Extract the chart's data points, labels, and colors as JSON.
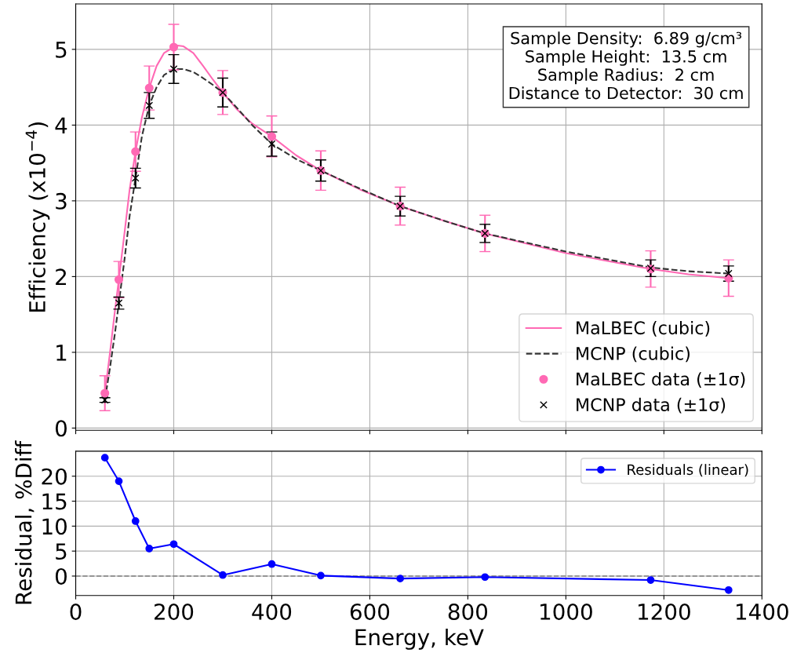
{
  "chart_data": [
    {
      "type": "line",
      "ylabel": "Efficiency (x10$^{−4}$)",
      "xlim": [
        0,
        1400
      ],
      "xticks": [
        0,
        200,
        400,
        600,
        800,
        1000,
        1200,
        1400
      ],
      "ylim": [
        -0.03,
        5.6
      ],
      "yticks": [
        0,
        1,
        2,
        3,
        4,
        5
      ],
      "tick_labels": "y",
      "grid": true,
      "legend": "bottom right",
      "annotations": [
        "Sample Density:  6.89 g/cm³\nSample Height:  13.5 cm\nSample Radius:  2 cm\nDistance to Detector:  30 cm"
      ],
      "series": [
        {
          "name": "MaLBEC (cubic)",
          "type": "line",
          "color": "#ff69b4",
          "line_style": "solid",
          "marker": "none",
          "x": [
            59.5,
            70,
            80,
            88,
            100,
            110,
            122,
            135,
            150,
            165,
            180,
            200,
            208,
            220,
            240,
            260,
            280,
            300,
            330,
            360,
            400,
            450,
            500,
            580,
            662,
            750,
            835,
            1000,
            1173,
            1250,
            1332
          ],
          "values": [
            0.46,
            1.0,
            1.55,
            1.96,
            2.6,
            3.15,
            3.65,
            4.1,
            4.49,
            4.78,
            4.95,
            5.03,
            5.05,
            5.04,
            4.95,
            4.78,
            4.6,
            4.43,
            4.2,
            4.02,
            3.85,
            3.6,
            3.4,
            3.15,
            2.93,
            2.74,
            2.57,
            2.31,
            2.1,
            2.03,
            1.98
          ]
        },
        {
          "name": "MCNP (cubic)",
          "type": "line",
          "color": "#333333",
          "line_style": "dashed",
          "marker": "none",
          "x": [
            59.5,
            70,
            80,
            88,
            100,
            110,
            122,
            135,
            150,
            165,
            180,
            200,
            220,
            240,
            260,
            280,
            300,
            330,
            360,
            400,
            450,
            500,
            580,
            662,
            750,
            835,
            1000,
            1173,
            1250,
            1332
          ],
          "values": [
            0.37,
            0.8,
            1.25,
            1.65,
            2.25,
            2.8,
            3.3,
            3.85,
            4.26,
            4.5,
            4.66,
            4.74,
            4.74,
            4.7,
            4.62,
            4.53,
            4.43,
            4.22,
            4.0,
            3.75,
            3.55,
            3.4,
            3.16,
            2.93,
            2.74,
            2.57,
            2.33,
            2.12,
            2.07,
            2.04
          ]
        },
        {
          "name": "MaLBEC data (±1σ)",
          "type": "scatter",
          "color": "#ff69b4",
          "marker": "circle",
          "x": [
            59.5,
            88,
            122,
            150,
            200,
            300,
            400,
            500,
            662,
            835,
            1173,
            1332
          ],
          "values": [
            0.46,
            1.96,
            3.65,
            4.49,
            5.03,
            4.43,
            3.85,
            3.4,
            2.93,
            2.57,
            2.1,
            1.98
          ],
          "errors": [
            0.23,
            0.24,
            0.26,
            0.29,
            0.3,
            0.29,
            0.27,
            0.26,
            0.25,
            0.24,
            0.24,
            0.24
          ]
        },
        {
          "name": "MCNP data (±1σ)",
          "type": "scatter",
          "color": "#000000",
          "marker": "cross",
          "x": [
            59.5,
            88,
            122,
            150,
            200,
            300,
            400,
            500,
            662,
            835,
            1173,
            1332
          ],
          "values": [
            0.37,
            1.65,
            3.3,
            4.26,
            4.74,
            4.43,
            3.75,
            3.4,
            2.93,
            2.57,
            2.11,
            2.04
          ],
          "errors": [
            0.03,
            0.08,
            0.13,
            0.17,
            0.19,
            0.19,
            0.16,
            0.14,
            0.13,
            0.12,
            0.11,
            0.1
          ]
        }
      ]
    },
    {
      "type": "line",
      "xlabel": "Energy, keV",
      "ylabel": "Residual, %Diff",
      "xlim": [
        0,
        1400
      ],
      "xticks": [
        0,
        200,
        400,
        600,
        800,
        1000,
        1200,
        1400
      ],
      "ylim": [
        -3.9,
        25
      ],
      "yticks": [
        0,
        5,
        10,
        15,
        20
      ],
      "grid": true,
      "legend": "top right",
      "marker": "circle",
      "line_style": "solid",
      "ref_lines": [
        {
          "axis": "y",
          "value": 0,
          "label": null,
          "color": "#808080",
          "line_style": "dashed"
        }
      ],
      "series": [
        {
          "name": "Residuals (linear)",
          "color": "#0000ff",
          "x": [
            59.5,
            88,
            122,
            150,
            200,
            300,
            400,
            500,
            662,
            835,
            1173,
            1332
          ],
          "values": [
            23.7,
            19.0,
            11.0,
            5.5,
            6.4,
            0.2,
            2.4,
            0.1,
            -0.5,
            -0.2,
            -0.8,
            -2.8
          ]
        }
      ]
    }
  ]
}
